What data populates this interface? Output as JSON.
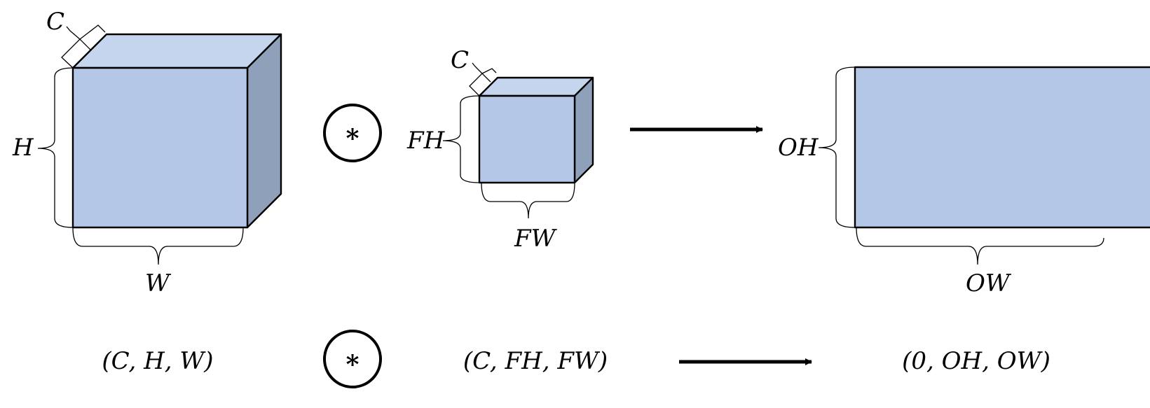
{
  "labels": {
    "input_channels": "C",
    "input_height": "H",
    "input_width": "W",
    "filter_channels": "C",
    "filter_height": "FH",
    "filter_width": "FW",
    "output_height": "OH",
    "output_width": "OW"
  },
  "operator_symbol": "*",
  "shapes": {
    "input": "(C, H, W)",
    "filter": "(C, FH, FW)",
    "output": "(0, OH, OW)"
  },
  "colors": {
    "front": "#b4c7e7",
    "top": "#c5d5ee",
    "side": "#8fa0bb",
    "line": "#000000"
  }
}
